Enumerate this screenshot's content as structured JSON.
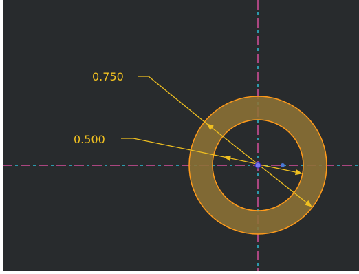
{
  "colors": {
    "background": "#282b2d",
    "centerline_dash": "#d64f9b",
    "centerline_dot": "#2ec0d6",
    "dimension": "#f0c020",
    "ring_fill": "#8c7236",
    "ring_edge": "#ff9a1a",
    "center_point": "#7a7ae6"
  },
  "dimensions": [
    {
      "label": "0.750",
      "kind": "diameter"
    },
    {
      "label": "0.500",
      "kind": "diameter"
    }
  ]
}
